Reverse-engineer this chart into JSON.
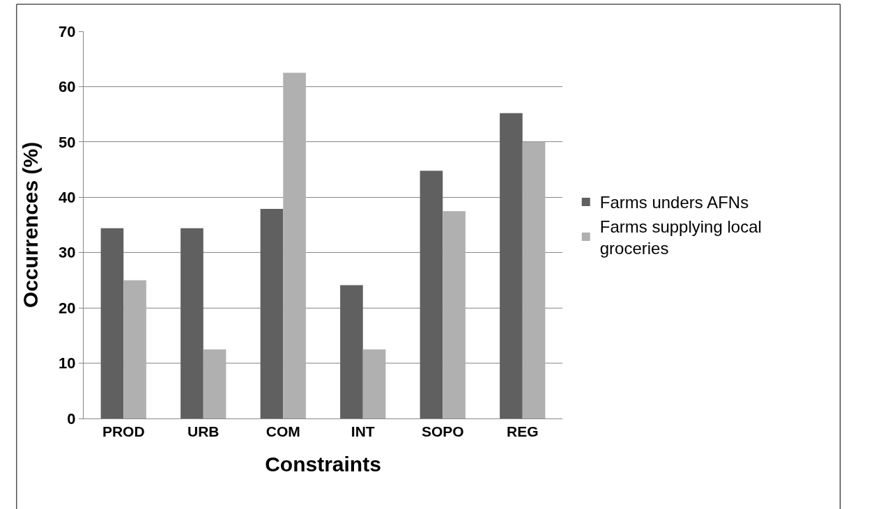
{
  "chart_data": {
    "type": "bar",
    "xlabel": "Constraints",
    "ylabel": "Occurrences (%)",
    "categories": [
      "PROD",
      "URB",
      "COM",
      "INT",
      "SOPO",
      "REG"
    ],
    "series": [
      {
        "name": "Farms unders AFNs",
        "color": "#606060",
        "values": [
          34.4,
          34.4,
          37.9,
          24.1,
          44.8,
          55.2
        ]
      },
      {
        "name": "Farms supplying local groceries",
        "color": "#b0b0b0",
        "values": [
          25.0,
          12.5,
          62.5,
          12.5,
          37.5,
          50.0
        ]
      }
    ],
    "ylim": [
      0,
      70
    ],
    "yticks": [
      0,
      10,
      20,
      30,
      40,
      50,
      60,
      70
    ],
    "grid": "y",
    "legend": "right"
  }
}
